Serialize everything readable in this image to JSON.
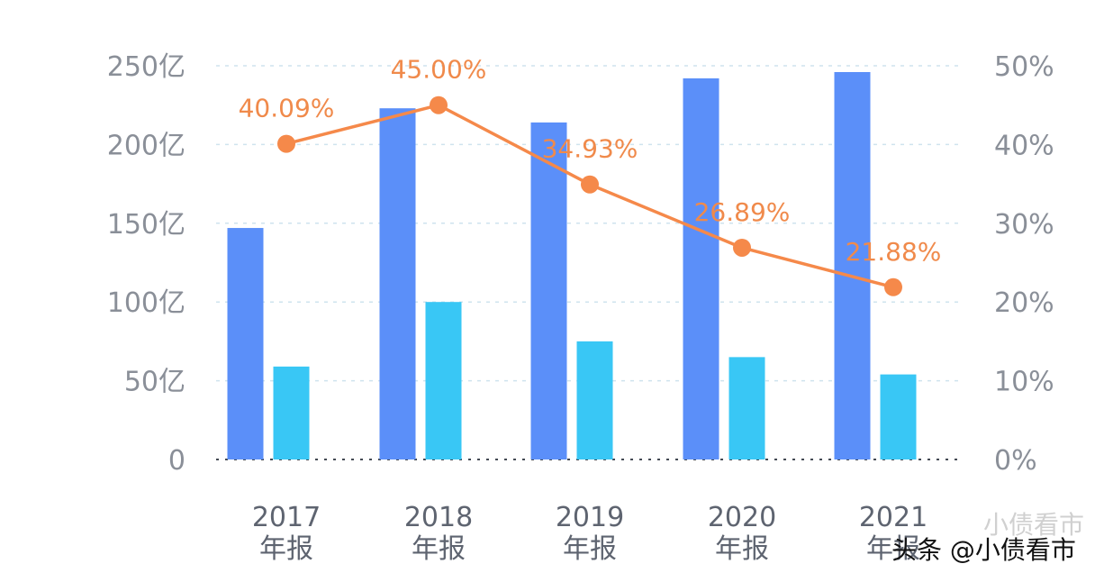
{
  "chart_data": {
    "type": "bar",
    "categories": [
      {
        "year": "2017",
        "suffix": "年报"
      },
      {
        "year": "2018",
        "suffix": "年报"
      },
      {
        "year": "2019",
        "suffix": "年报"
      },
      {
        "year": "2020",
        "suffix": "年报"
      },
      {
        "year": "2021",
        "suffix": "年报"
      }
    ],
    "series": [
      {
        "name": "series-1",
        "axis": "left",
        "kind": "bar",
        "color": "#5b8ff9",
        "values": [
          147,
          223,
          214,
          242,
          246
        ]
      },
      {
        "name": "series-2",
        "axis": "left",
        "kind": "bar",
        "color": "#39c7f5",
        "values": [
          59,
          100,
          75,
          65,
          54
        ]
      },
      {
        "name": "ratio",
        "axis": "right",
        "kind": "line",
        "color": "#f5894a",
        "values": [
          40.09,
          45.0,
          34.93,
          26.89,
          21.88
        ],
        "labels": [
          "40.09%",
          "45.00%",
          "34.93%",
          "26.89%",
          "21.88%"
        ]
      }
    ],
    "y_left": {
      "min": 0,
      "max": 250,
      "ticks": [
        0,
        50,
        100,
        150,
        200,
        250
      ],
      "tick_labels": [
        "0",
        "50亿",
        "100亿",
        "150亿",
        "200亿",
        "250亿"
      ]
    },
    "y_right": {
      "min": 0,
      "max": 50,
      "ticks": [
        0,
        10,
        20,
        30,
        40,
        50
      ],
      "tick_labels": [
        "0%",
        "10%",
        "20%",
        "30%",
        "40%",
        "50%"
      ]
    },
    "grid": true,
    "legend": "none"
  },
  "watermark": {
    "text": "头条 @小债看市",
    "secondary": "小债看市"
  }
}
